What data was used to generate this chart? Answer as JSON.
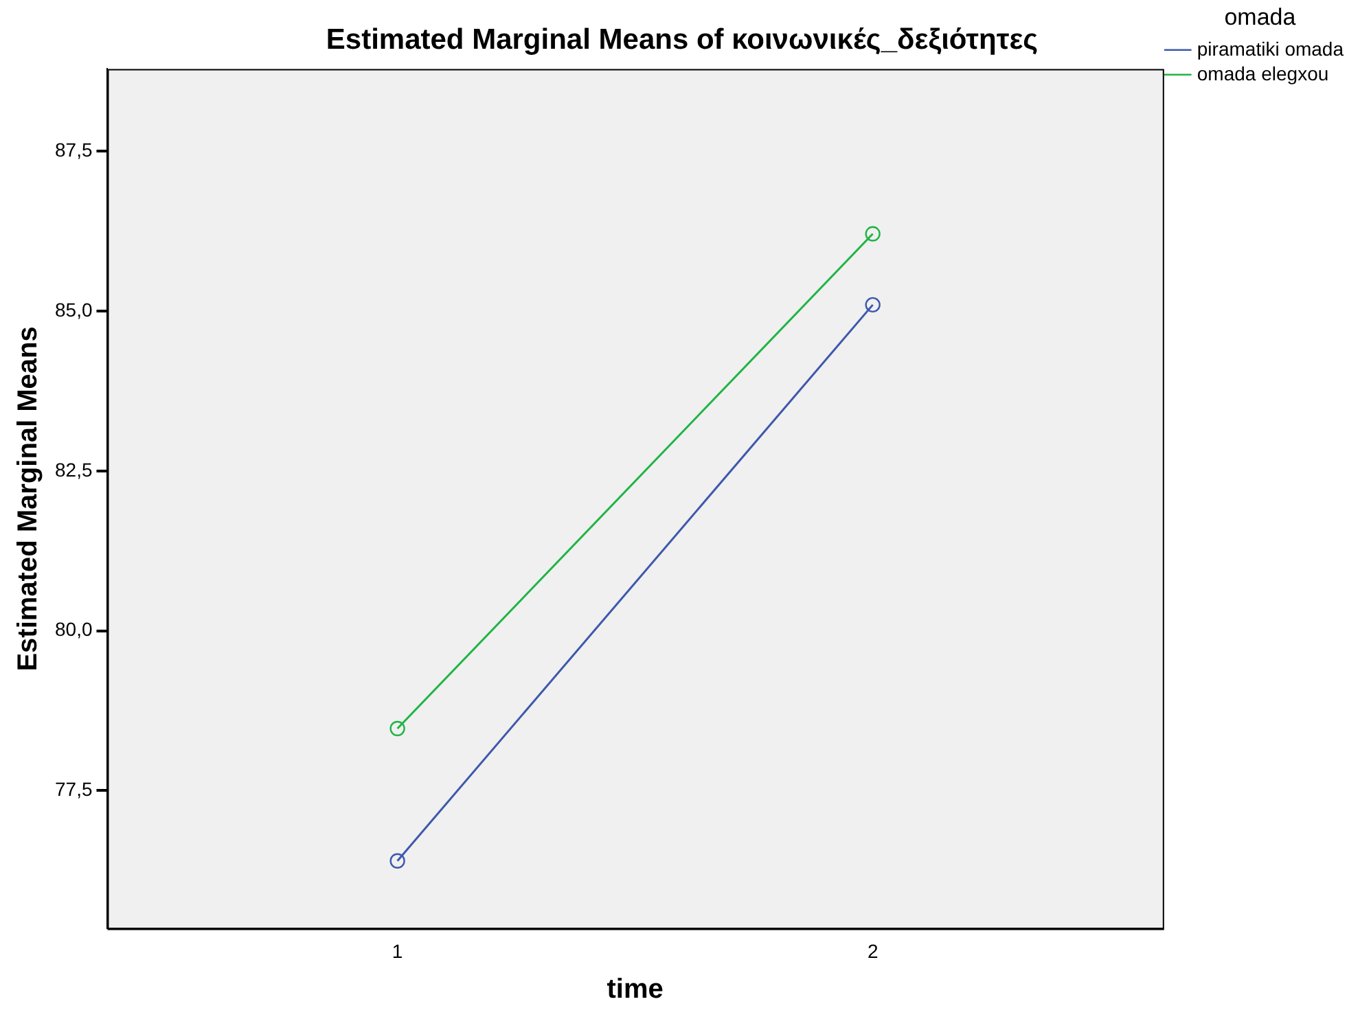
{
  "chart_data": {
    "type": "line",
    "title": "Estimated Marginal Means of κοινωνικές_δεξιότητες",
    "xlabel": "time",
    "ylabel": "Estimated Marginal Means",
    "legend_title": "omada",
    "x": [
      1,
      2
    ],
    "xlim": [
      0.39,
      2.61
    ],
    "xticks": [
      1,
      2
    ],
    "series": [
      {
        "name": "piramatiki omada",
        "color": "#3e58ac",
        "values": [
          76.4,
          85.1
        ]
      },
      {
        "name": "omada elegxou",
        "color": "#20b445",
        "values": [
          78.47,
          86.21
        ]
      }
    ],
    "ylim": [
      75.34,
      88.79
    ],
    "yticks": [
      {
        "value": 77.5,
        "label": "77,5"
      },
      {
        "value": 80,
        "label": "80,0"
      },
      {
        "value": 82.5,
        "label": "82,5"
      },
      {
        "value": 85,
        "label": "85,0"
      },
      {
        "value": 87.5,
        "label": "87,5"
      }
    ],
    "grid": false,
    "legend": "top right",
    "marker": "circle",
    "line_style": "solid"
  }
}
